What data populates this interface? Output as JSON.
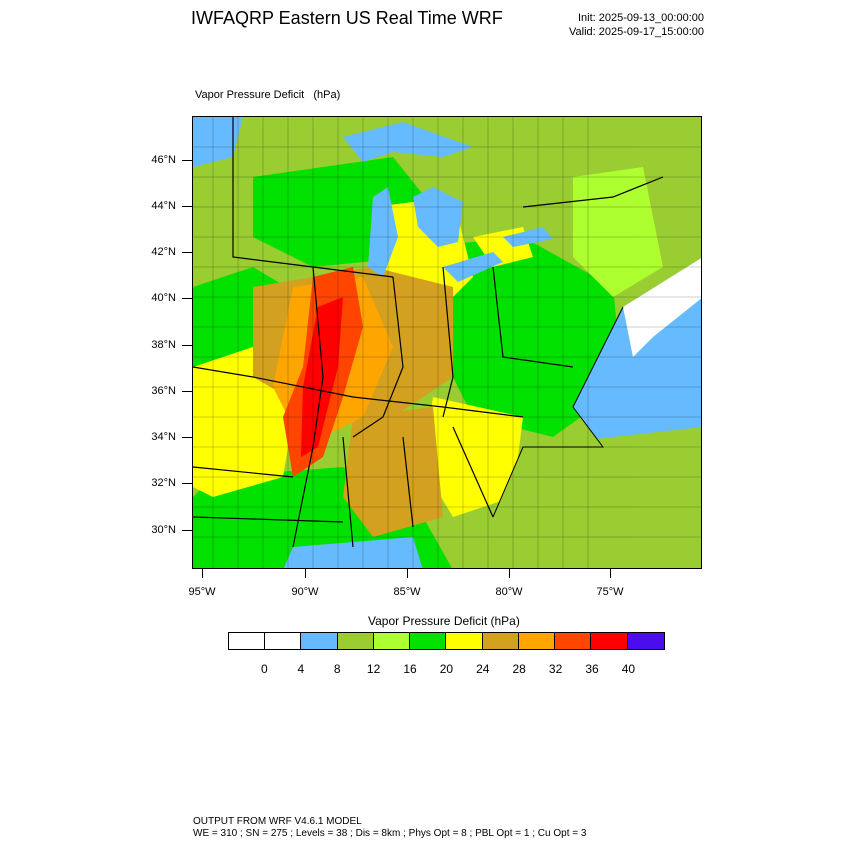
{
  "header": {
    "title": "IWFAQRP Eastern US Real Time WRF",
    "init": "Init: 2025-09-13_00:00:00",
    "valid": "Valid: 2025-09-17_15:00:00"
  },
  "field_label": "Vapor Pressure Deficit   (hPa)",
  "map": {
    "lat_labels": [
      "46°N",
      "44°N",
      "42°N",
      "40°N",
      "38°N",
      "36°N",
      "34°N",
      "32°N",
      "30°N"
    ],
    "lon_labels": [
      "95°W",
      "90°W",
      "85°W",
      "80°W",
      "75°W"
    ],
    "water_color": "#66bbff",
    "land_default_color": "#9acd32"
  },
  "legend": {
    "title": "Vapor Pressure Deficit  (hPa)",
    "colors": [
      "#ffffff",
      "#ffffff",
      "#66b8ff",
      "#9acd32",
      "#adff2f",
      "#00e100",
      "#ffff00",
      "#d4a020",
      "#ffa500",
      "#ff4500",
      "#ff0000",
      "#4b0cf0"
    ],
    "labels": [
      "0",
      "4",
      "8",
      "12",
      "16",
      "20",
      "24",
      "28",
      "32",
      "36",
      "40"
    ]
  },
  "footer": {
    "line1": "OUTPUT FROM WRF V4.6.1 MODEL",
    "line2": "WE = 310 ; SN = 275 ; Levels = 38 ; Dis = 8km ; Phys Opt = 8 ; PBL Opt = 1 ; Cu Opt = 3"
  }
}
